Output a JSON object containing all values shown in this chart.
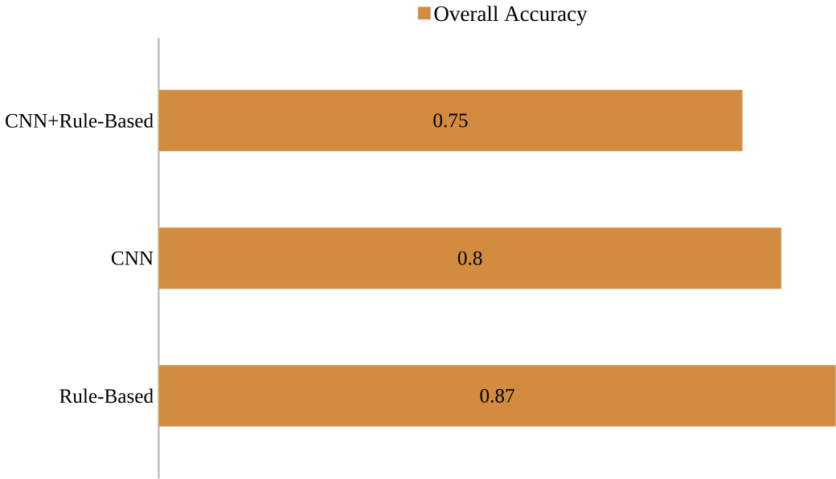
{
  "chart_data": {
    "type": "bar",
    "orientation": "horizontal",
    "categories": [
      "CNN+Rule-Based",
      "CNN",
      "Rule-Based"
    ],
    "series": [
      {
        "name": "Overall Accuracy",
        "color": "#d38b40",
        "values": [
          0.75,
          0.8,
          0.87
        ]
      }
    ],
    "data_labels": true,
    "legend": "top",
    "grid": false
  }
}
